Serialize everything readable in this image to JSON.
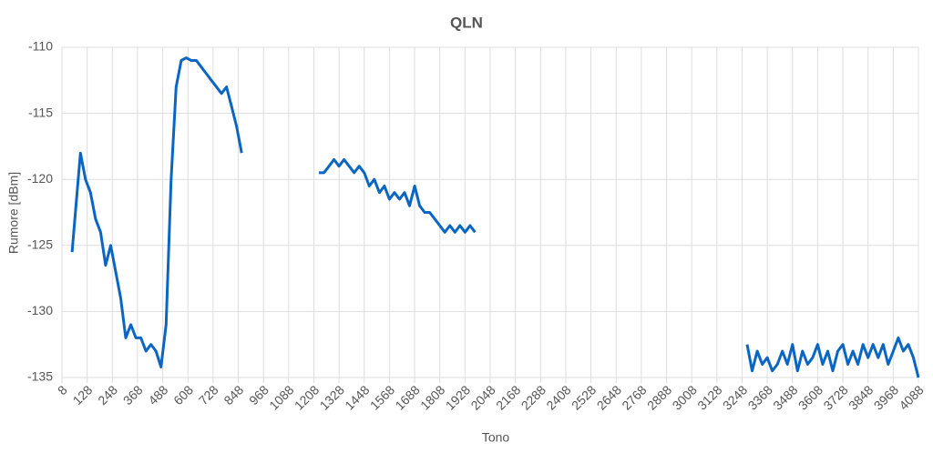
{
  "chart_data": {
    "type": "line",
    "title": "QLN",
    "x_label": "Tono",
    "y_label": "Rumore [dBm]",
    "color": "#0b66c3",
    "grid": true,
    "xlim": [
      8,
      4088
    ],
    "ylim": [
      -135,
      -110
    ],
    "xticks": [
      8,
      128,
      248,
      368,
      488,
      608,
      728,
      848,
      968,
      1088,
      1208,
      1328,
      1448,
      1568,
      1688,
      1808,
      1928,
      2048,
      2168,
      2288,
      2408,
      2528,
      2648,
      2768,
      2888,
      3008,
      3128,
      3248,
      3368,
      3488,
      3608,
      3728,
      3848,
      3968,
      4088
    ],
    "yticks": [
      -110,
      -115,
      -120,
      -125,
      -130,
      -135
    ],
    "x": [
      56,
      80,
      96,
      120,
      144,
      168,
      192,
      216,
      240,
      264,
      288,
      312,
      336,
      360,
      384,
      408,
      432,
      456,
      480,
      504,
      528,
      552,
      576,
      600,
      624,
      648,
      672,
      696,
      720,
      744,
      768,
      792,
      816,
      840,
      864,
      1000,
      1232,
      1256,
      1280,
      1304,
      1328,
      1352,
      1376,
      1400,
      1424,
      1448,
      1472,
      1496,
      1520,
      1544,
      1568,
      1592,
      1616,
      1640,
      1664,
      1688,
      1712,
      1736,
      1760,
      1784,
      1808,
      1832,
      1856,
      1880,
      1904,
      1928,
      1952,
      1976,
      2600,
      3272,
      3296,
      3320,
      3344,
      3368,
      3392,
      3416,
      3440,
      3464,
      3488,
      3512,
      3536,
      3560,
      3584,
      3608,
      3632,
      3656,
      3680,
      3704,
      3728,
      3752,
      3776,
      3800,
      3824,
      3848,
      3872,
      3896,
      3920,
      3944,
      3968,
      3992,
      4016,
      4040,
      4064,
      4088
    ],
    "values": [
      -125.5,
      -121,
      -118,
      -120,
      -121,
      -123,
      -124,
      -126.5,
      -125,
      -127,
      -129,
      -132,
      -131,
      -132,
      -132,
      -133,
      -132.5,
      -133,
      -134.2,
      -131,
      -120,
      -113,
      -111,
      -110.8,
      -111,
      -111,
      -111.5,
      -112,
      -112.5,
      -113,
      -113.5,
      -113,
      -114.5,
      -116,
      -118,
      null,
      -119.5,
      -119.5,
      -119,
      -118.5,
      -119,
      -118.5,
      -119,
      -119.5,
      -119,
      -119.5,
      -120.5,
      -120,
      -121,
      -120.5,
      -121.5,
      -121,
      -121.5,
      -121,
      -122,
      -120.5,
      -122,
      -122.5,
      -122.5,
      -123,
      -123.5,
      -124,
      -123.5,
      -124,
      -123.5,
      -124,
      -123.5,
      -124,
      null,
      -132.5,
      -134.5,
      -133,
      -134,
      -133.5,
      -134.5,
      -134,
      -133,
      -134,
      -132.5,
      -134.5,
      -133,
      -134,
      -133.5,
      -132.5,
      -134,
      -133,
      -134.5,
      -133,
      -132.5,
      -134,
      -133,
      -134,
      -132.5,
      -133.5,
      -132.5,
      -133.5,
      -132.5,
      -134,
      -133,
      -132,
      -133,
      -132.5,
      -133.5,
      -135
    ]
  }
}
